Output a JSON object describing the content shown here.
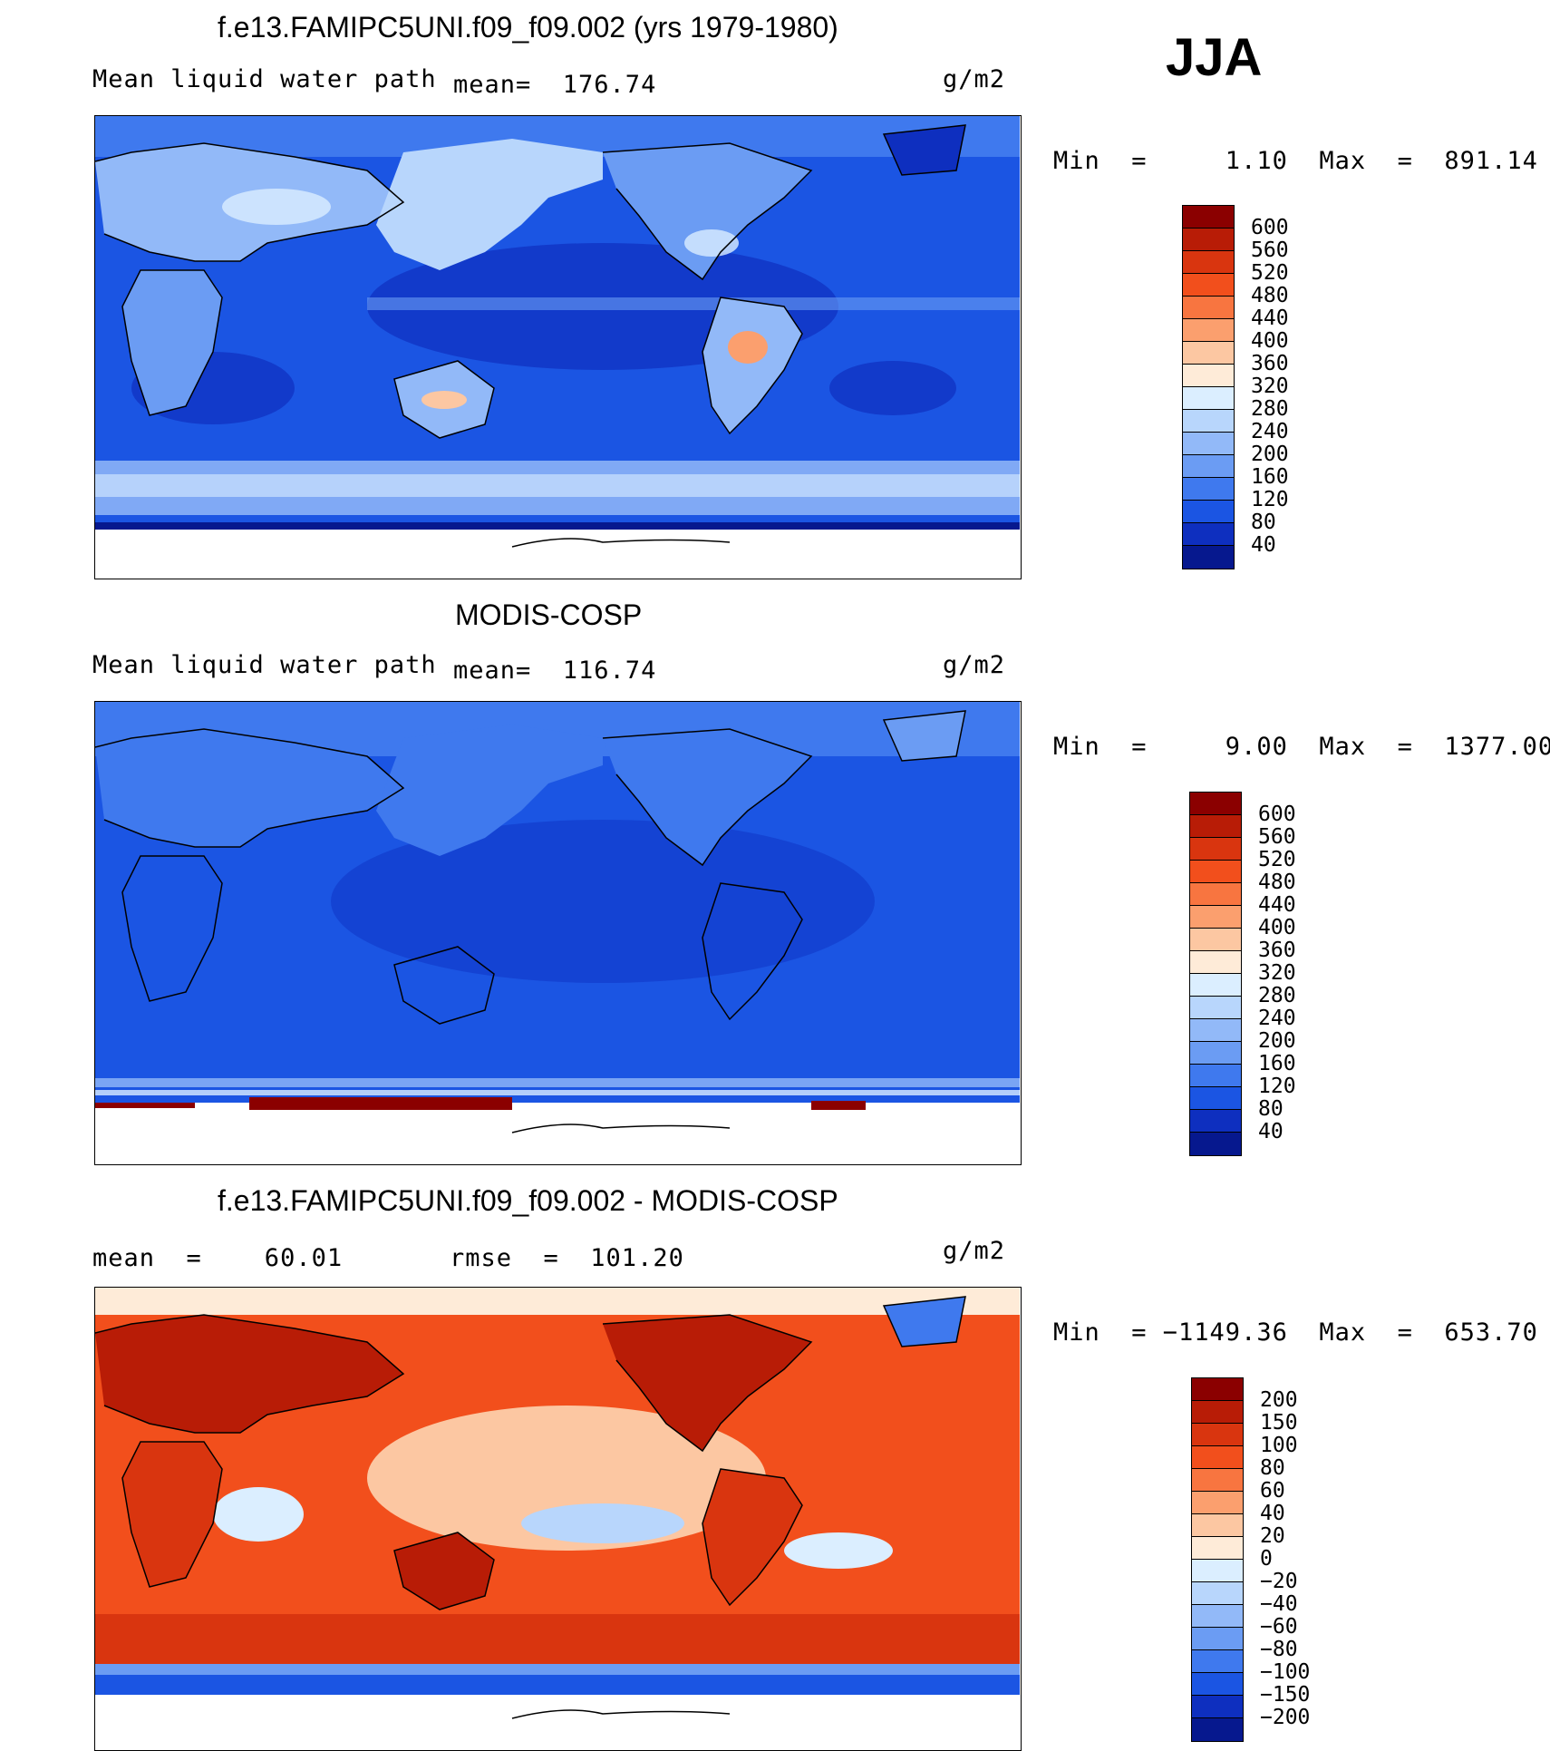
{
  "season": "JJA",
  "panels": [
    {
      "id": "model",
      "title": "f.e13.FAMIPC5UNI.f09_f09.002 (yrs 1979-1980)",
      "left_label": "Mean liquid water path",
      "center_label": "mean=  176.74",
      "units": "g/m2",
      "minmax": "Min  =     1.10  Max  =  891.14",
      "colorbar": {
        "labels": [
          "600",
          "560",
          "520",
          "480",
          "440",
          "400",
          "360",
          "320",
          "280",
          "240",
          "200",
          "160",
          "120",
          "80",
          "40"
        ],
        "colors": [
          "#8b0000",
          "#b81c06",
          "#d9350f",
          "#f24f1c",
          "#f87540",
          "#fb9f6e",
          "#fcc7a2",
          "#feebd8",
          "#dbeeff",
          "#b8d6fc",
          "#92b9f8",
          "#6b9cf3",
          "#3f79ee",
          "#1b55e3",
          "#0e2fbf",
          "#06188e"
        ]
      }
    },
    {
      "id": "obs",
      "title": "MODIS-COSP",
      "left_label": "Mean liquid water path",
      "center_label": "mean=  116.74",
      "units": "g/m2",
      "minmax": "Min  =     9.00  Max  =  1377.00",
      "colorbar": {
        "labels": [
          "600",
          "560",
          "520",
          "480",
          "440",
          "400",
          "360",
          "320",
          "280",
          "240",
          "200",
          "160",
          "120",
          "80",
          "40"
        ],
        "colors": [
          "#8b0000",
          "#b81c06",
          "#d9350f",
          "#f24f1c",
          "#f87540",
          "#fb9f6e",
          "#fcc7a2",
          "#feebd8",
          "#dbeeff",
          "#b8d6fc",
          "#92b9f8",
          "#6b9cf3",
          "#3f79ee",
          "#1b55e3",
          "#0e2fbf",
          "#06188e"
        ]
      }
    },
    {
      "id": "diff",
      "title": "f.e13.FAMIPC5UNI.f09_f09.002 - MODIS-COSP",
      "left_label": "mean  =    60.01",
      "center_label": "rmse  =  101.20",
      "units": "g/m2",
      "minmax": "Min  = −1149.36  Max  =  653.70",
      "colorbar": {
        "labels": [
          "200",
          "150",
          "100",
          "80",
          "60",
          "40",
          "20",
          "0",
          "−20",
          "−40",
          "−60",
          "−80",
          "−100",
          "−150",
          "−200"
        ],
        "colors": [
          "#8b0000",
          "#b81c06",
          "#d9350f",
          "#f24f1c",
          "#f87540",
          "#fb9f6e",
          "#fcc7a2",
          "#feebd8",
          "#dbeeff",
          "#b8d6fc",
          "#92b9f8",
          "#6b9cf3",
          "#3f79ee",
          "#1b55e3",
          "#0e2fbf",
          "#06188e"
        ]
      }
    }
  ]
}
